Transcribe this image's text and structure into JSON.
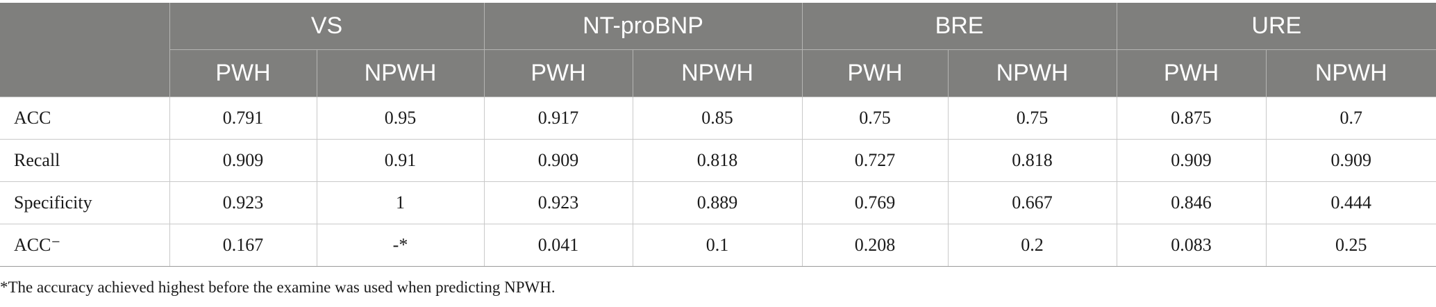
{
  "table": {
    "groups": [
      "VS",
      "NT-proBNP",
      "BRE",
      "URE"
    ],
    "subheaders": [
      "PWH",
      "NPWH",
      "PWH",
      "NPWH",
      "PWH",
      "NPWH",
      "PWH",
      "NPWH"
    ],
    "rows": [
      {
        "label": "ACC",
        "values": [
          "0.791",
          "0.95",
          "0.917",
          "0.85",
          "0.75",
          "0.75",
          "0.875",
          "0.7"
        ]
      },
      {
        "label": "Recall",
        "values": [
          "0.909",
          "0.91",
          "0.909",
          "0.818",
          "0.727",
          "0.818",
          "0.909",
          "0.909"
        ]
      },
      {
        "label": "Specificity",
        "values": [
          "0.923",
          "1",
          "0.923",
          "0.889",
          "0.769",
          "0.667",
          "0.846",
          "0.444"
        ]
      },
      {
        "label": "ACC⁻",
        "values": [
          "0.167",
          "-*",
          "0.041",
          "0.1",
          "0.208",
          "0.2",
          "0.083",
          "0.25"
        ]
      }
    ]
  },
  "footnote": "*The accuracy achieved highest before the examine was used when predicting NPWH.",
  "colors": {
    "header_bg": "#7f7f7d",
    "header_text": "#ffffff",
    "grid": "#c9c9c9"
  }
}
